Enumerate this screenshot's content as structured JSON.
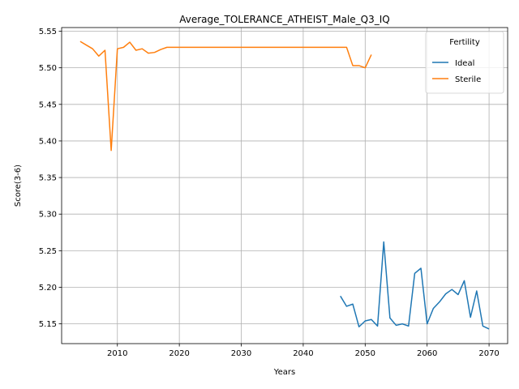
{
  "chart_data": {
    "type": "line",
    "title": "Average_TOLERANCE_ATHEIST_Male_Q3_IQ",
    "xlabel": "Years",
    "ylabel": "Score(3-6)",
    "xlim": [
      2001,
      2073
    ],
    "ylim": [
      5.123,
      5.555
    ],
    "xticks": [
      2010,
      2020,
      2030,
      2040,
      2050,
      2060,
      2070
    ],
    "yticks": [
      5.15,
      5.2,
      5.25,
      5.3,
      5.35,
      5.4,
      5.45,
      5.5,
      5.55
    ],
    "grid": true,
    "legend": {
      "title": "Fertility",
      "placement": "top-right"
    },
    "series": [
      {
        "name": "Ideal",
        "color": "#1f77b4",
        "points": [
          [
            2046,
            5.188
          ],
          [
            2047,
            5.174
          ],
          [
            2048,
            5.177
          ],
          [
            2049,
            5.146
          ],
          [
            2050,
            5.154
          ],
          [
            2051,
            5.156
          ],
          [
            2052,
            5.147
          ],
          [
            2053,
            5.262
          ],
          [
            2054,
            5.158
          ],
          [
            2055,
            5.148
          ],
          [
            2056,
            5.15
          ],
          [
            2057,
            5.147
          ],
          [
            2058,
            5.219
          ],
          [
            2059,
            5.226
          ],
          [
            2060,
            5.15
          ],
          [
            2061,
            5.171
          ],
          [
            2062,
            5.18
          ],
          [
            2063,
            5.191
          ],
          [
            2064,
            5.197
          ],
          [
            2065,
            5.19
          ],
          [
            2066,
            5.209
          ],
          [
            2067,
            5.159
          ],
          [
            2068,
            5.195
          ],
          [
            2069,
            5.147
          ],
          [
            2070,
            5.143
          ]
        ]
      },
      {
        "name": "Sterile",
        "color": "#ff7f0e",
        "points": [
          [
            2004,
            5.536
          ],
          [
            2005,
            5.531
          ],
          [
            2006,
            5.526
          ],
          [
            2007,
            5.516
          ],
          [
            2008,
            5.524
          ],
          [
            2009,
            5.387
          ],
          [
            2010,
            5.526
          ],
          [
            2011,
            5.528
          ],
          [
            2012,
            5.535
          ],
          [
            2013,
            5.524
          ],
          [
            2014,
            5.526
          ],
          [
            2015,
            5.52
          ],
          [
            2016,
            5.521
          ],
          [
            2017,
            5.525
          ],
          [
            2018,
            5.528
          ],
          [
            2019,
            5.528
          ],
          [
            2020,
            5.528
          ],
          [
            2025,
            5.528
          ],
          [
            2030,
            5.528
          ],
          [
            2035,
            5.528
          ],
          [
            2040,
            5.528
          ],
          [
            2045,
            5.528
          ],
          [
            2047,
            5.528
          ],
          [
            2048,
            5.503
          ],
          [
            2049,
            5.503
          ],
          [
            2050,
            5.5
          ],
          [
            2051,
            5.518
          ]
        ]
      }
    ]
  }
}
